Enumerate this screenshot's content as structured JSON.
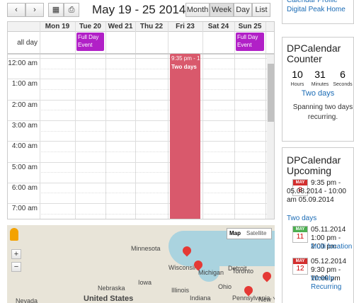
{
  "toolbar": {
    "title": "May 19 - 25 2014",
    "views": [
      "Month",
      "Week",
      "Day",
      "List"
    ]
  },
  "calendar": {
    "days": [
      "Mon 19",
      "Tue 20",
      "Wed 21",
      "Thu 22",
      "Fri 23",
      "Sat 24",
      "Sun 25"
    ],
    "all_day_label": "all day",
    "all_day_events": [
      {
        "title": "Full Day Event"
      },
      {
        "title": "Full Day Event"
      }
    ],
    "times": [
      "12:00 am",
      "1:00 am",
      "2:00 am",
      "3:00 am",
      "4:00 am",
      "5:00 am",
      "6:00 am",
      "7:00 am"
    ],
    "timed_event": {
      "time": "9:35 pm - 1",
      "title": "Two days"
    }
  },
  "map": {
    "controls": [
      "Map",
      "Satellite"
    ],
    "places": [
      "Minnesota",
      "Wisconsin",
      "Michigan",
      "Toronto",
      "Detroit",
      "Iowa",
      "Illinois",
      "Indiana",
      "Ohio",
      "Pennsylvania",
      "New York",
      "Nebraska",
      "United States",
      "Nevada"
    ]
  },
  "sidebar": {
    "links": [
      "Calendar Profile",
      "Digital Peak Home"
    ],
    "counter": {
      "title": "DPCalendar Counter",
      "units": [
        {
          "value": "10",
          "label": "Hours"
        },
        {
          "value": "31",
          "label": "Minutes"
        },
        {
          "value": "6",
          "label": "Seconds"
        }
      ],
      "event": "Two days",
      "description": "Spanning two days recurring."
    },
    "upcoming": {
      "title": "DPCalendar Upcoming",
      "items": [
        {
          "month": "MAY",
          "day": "8",
          "date": "9:35 pm - 05.08.2014 - 10:00 am 05.09.2014",
          "link": "Two days"
        },
        {
          "month": "MAY",
          "day": "11",
          "date": "05.11.2014 1:00 pm - 2:00 pm",
          "link": "Multi location"
        },
        {
          "month": "MAY",
          "day": "12",
          "date": "05.12.2014 9:30 pm - 10:00 pm",
          "link": "Weekly Recurring"
        }
      ]
    }
  }
}
